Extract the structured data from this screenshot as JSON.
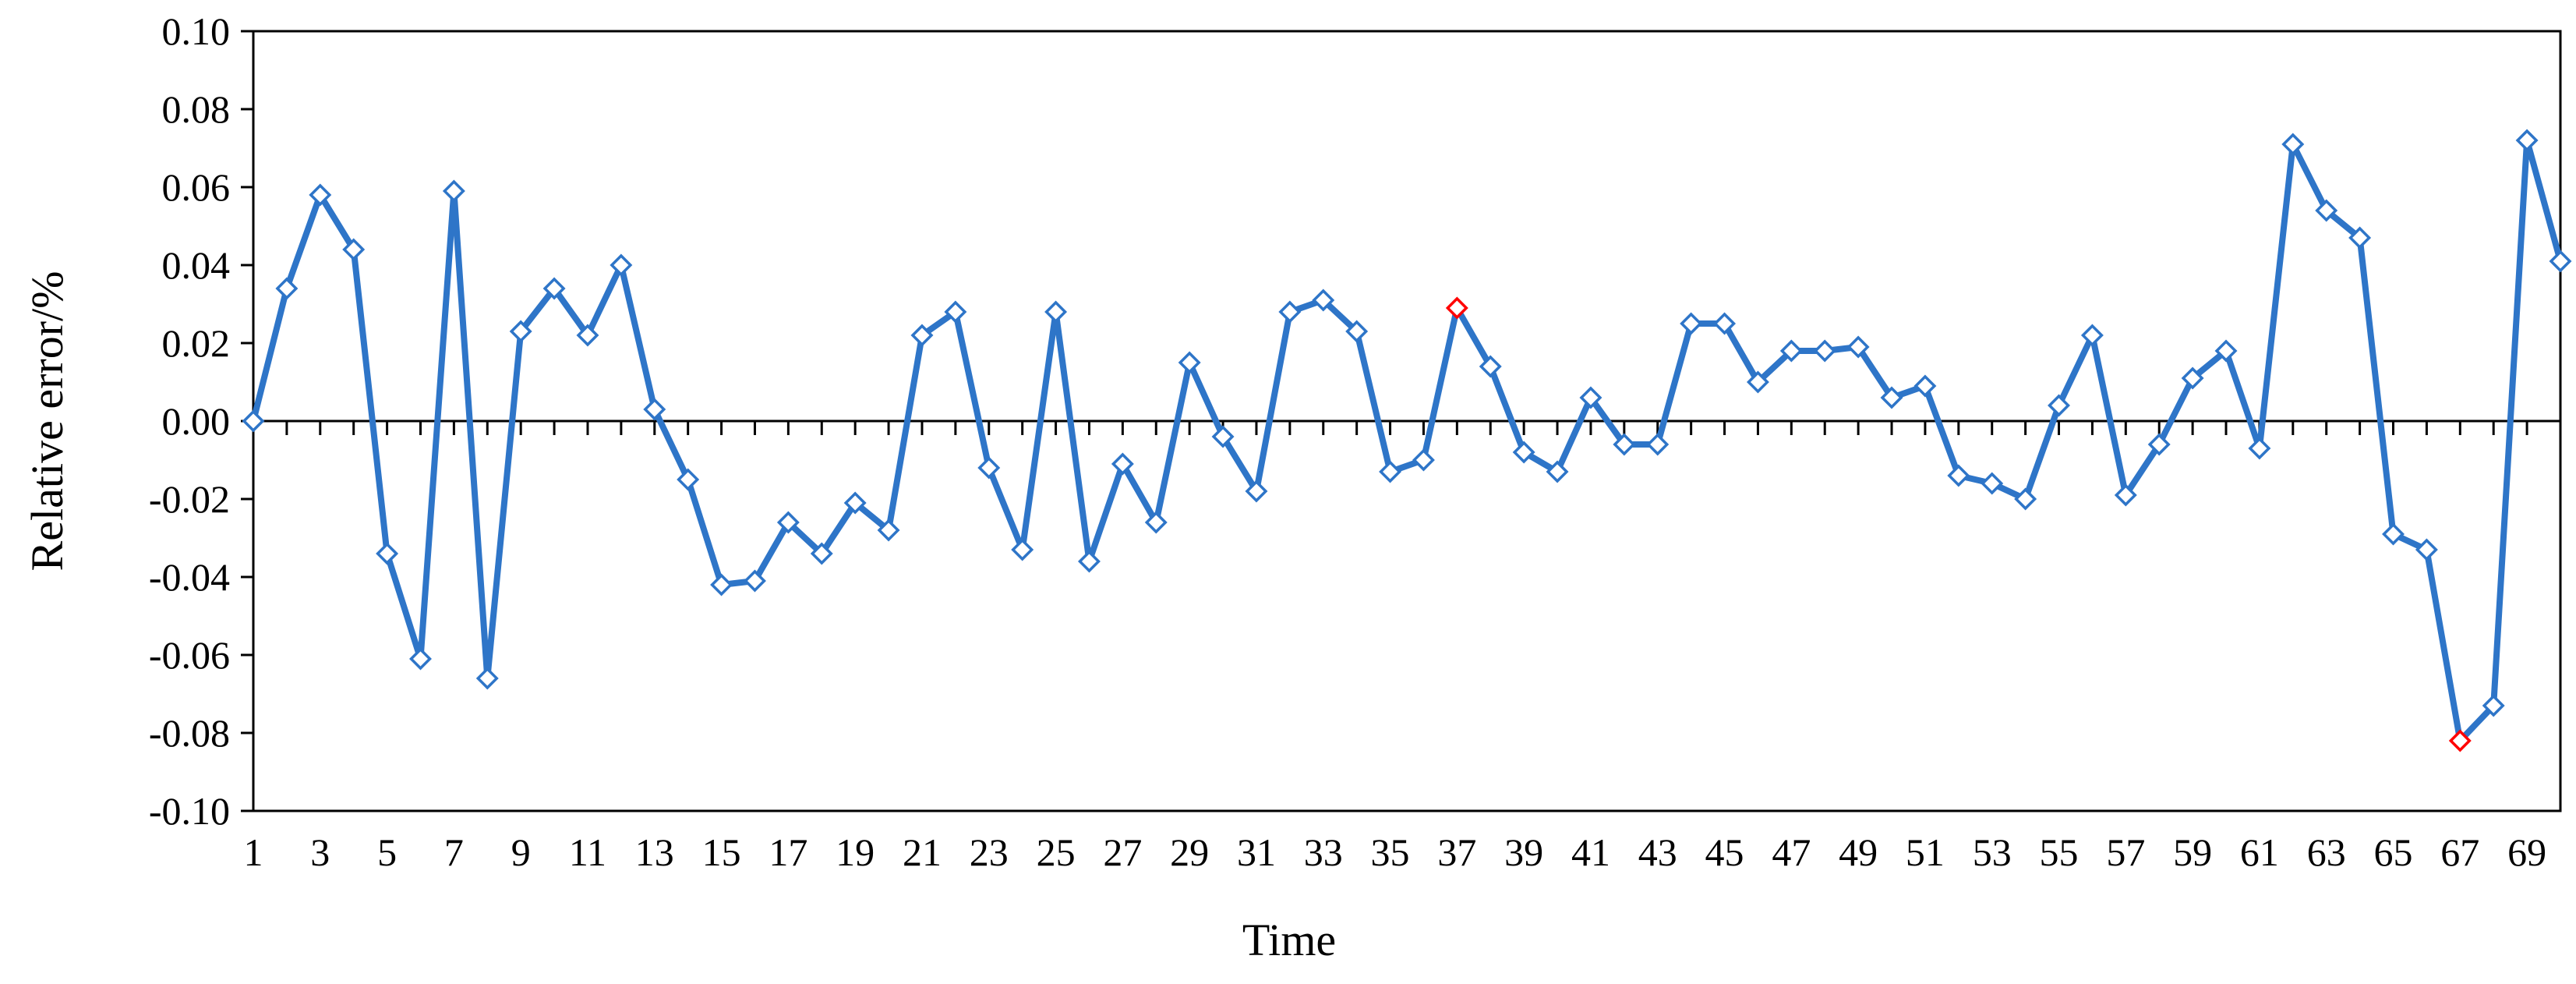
{
  "chart_data": {
    "type": "line",
    "xlabel": "Time",
    "ylabel": "Relative error/%",
    "ylim": [
      -0.1,
      0.1
    ],
    "xlim": [
      1,
      70
    ],
    "grid": false,
    "yticks": [
      "0.10",
      "0.08",
      "0.06",
      "0.04",
      "0.02",
      "0.00",
      "-0.02",
      "-0.04",
      "-0.06",
      "-0.08",
      "-0.10"
    ],
    "yticks_values": [
      0.1,
      0.08,
      0.06,
      0.04,
      0.02,
      0.0,
      -0.02,
      -0.04,
      -0.06,
      -0.08,
      -0.1
    ],
    "xticks": [
      "1",
      "3",
      "5",
      "7",
      "9",
      "11",
      "13",
      "15",
      "17",
      "19",
      "21",
      "23",
      "25",
      "27",
      "29",
      "31",
      "33",
      "35",
      "37",
      "39",
      "41",
      "43",
      "45",
      "47",
      "49",
      "51",
      "53",
      "55",
      "57",
      "59",
      "61",
      "63",
      "65",
      "67",
      "69"
    ],
    "xticks_values": [
      1,
      3,
      5,
      7,
      9,
      11,
      13,
      15,
      17,
      19,
      21,
      23,
      25,
      27,
      29,
      31,
      33,
      35,
      37,
      39,
      41,
      43,
      45,
      47,
      49,
      51,
      53,
      55,
      57,
      59,
      61,
      63,
      65,
      67,
      69
    ],
    "series": [
      {
        "color": "#2E75C8",
        "marker": "diamond",
        "x": [
          1,
          2,
          3,
          4,
          5,
          6,
          7,
          8,
          9,
          10,
          11,
          12,
          13,
          14,
          15,
          16,
          17,
          18,
          19,
          20,
          21,
          22,
          23,
          24,
          25,
          26,
          27,
          28,
          29,
          30,
          31,
          32,
          33,
          34,
          35,
          36,
          37,
          38,
          39,
          40,
          41,
          42,
          43,
          44,
          45,
          46,
          47,
          48,
          49,
          50,
          51,
          52,
          53,
          54,
          55,
          56,
          57,
          58,
          59,
          60,
          61,
          62,
          63,
          64,
          65,
          66,
          67,
          68,
          69,
          70
        ],
        "values": [
          0.0,
          0.034,
          0.058,
          0.044,
          -0.034,
          -0.061,
          0.059,
          -0.066,
          0.023,
          0.034,
          0.022,
          0.04,
          0.003,
          -0.015,
          -0.042,
          -0.041,
          -0.026,
          -0.034,
          -0.021,
          -0.028,
          0.022,
          0.028,
          -0.012,
          -0.033,
          0.028,
          -0.036,
          -0.011,
          -0.026,
          0.015,
          -0.004,
          -0.018,
          0.028,
          0.031,
          0.023,
          -0.013,
          -0.01,
          0.029,
          0.014,
          -0.008,
          -0.013,
          0.006,
          -0.006,
          -0.006,
          0.025,
          0.025,
          0.01,
          0.018,
          0.018,
          0.019,
          0.006,
          0.009,
          -0.014,
          -0.016,
          -0.02,
          0.004,
          0.022,
          -0.019,
          -0.006,
          0.011,
          0.018,
          -0.007,
          0.071,
          0.054,
          0.047,
          -0.029,
          -0.033,
          -0.082,
          -0.073,
          0.072,
          0.041
        ]
      }
    ],
    "highlight_points": [
      {
        "x": 37,
        "y": 0.029,
        "color": "#FF0000"
      },
      {
        "x": 67,
        "y": -0.082,
        "color": "#FF0000"
      }
    ]
  }
}
